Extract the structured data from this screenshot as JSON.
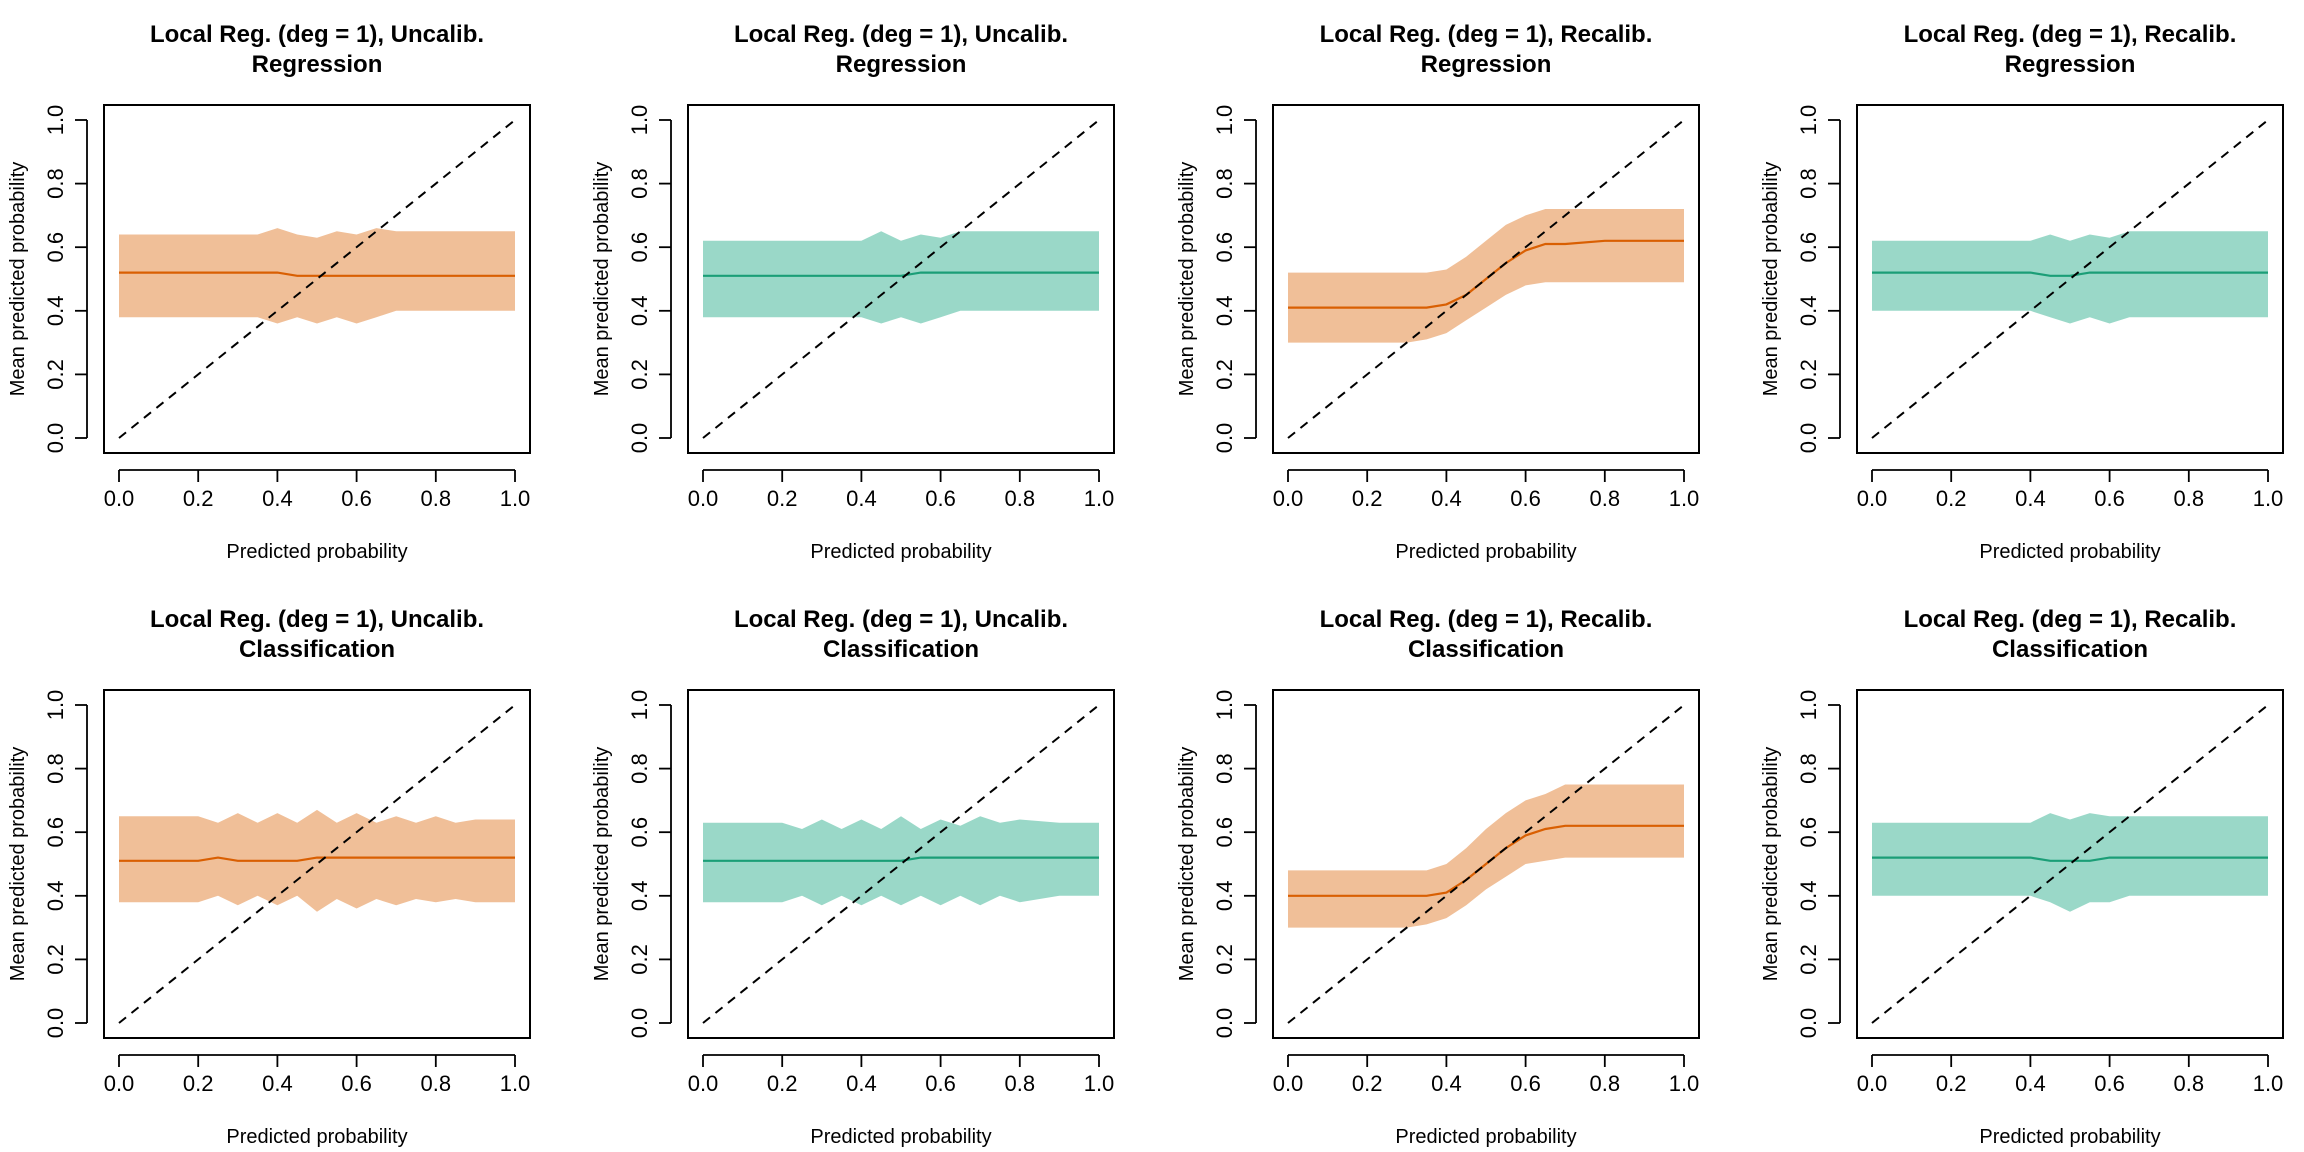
{
  "figure": {
    "colors": {
      "orange_fill": "#f0bf98",
      "orange_line": "#d95f02",
      "teal_fill": "#9ad8c8",
      "teal_line": "#1b9e77"
    },
    "xlabel": "Predicted probability",
    "ylabel": "Mean predicted probability",
    "ticks": [
      "0.0",
      "0.2",
      "0.4",
      "0.6",
      "0.8",
      "1.0"
    ]
  },
  "chart_data": [
    {
      "type": "area",
      "color": "orange",
      "title_line1": "Local Reg. (deg = 1), Uncalib.",
      "title_line2": "Regression",
      "xlabel": "Predicted probability",
      "ylabel": "Mean predicted probability",
      "xlim": [
        0,
        1
      ],
      "ylim": [
        0,
        1
      ],
      "diagonal": true,
      "x": [
        0,
        0.1,
        0.2,
        0.3,
        0.35,
        0.4,
        0.45,
        0.5,
        0.55,
        0.6,
        0.65,
        0.7,
        0.8,
        0.9,
        1.0
      ],
      "mean": [
        0.52,
        0.52,
        0.52,
        0.52,
        0.52,
        0.52,
        0.51,
        0.51,
        0.51,
        0.51,
        0.51,
        0.51,
        0.51,
        0.51,
        0.51
      ],
      "upper": [
        0.64,
        0.64,
        0.64,
        0.64,
        0.64,
        0.66,
        0.64,
        0.63,
        0.65,
        0.64,
        0.66,
        0.65,
        0.65,
        0.65,
        0.65
      ],
      "lower": [
        0.38,
        0.38,
        0.38,
        0.38,
        0.38,
        0.36,
        0.38,
        0.36,
        0.38,
        0.36,
        0.38,
        0.4,
        0.4,
        0.4,
        0.4
      ]
    },
    {
      "type": "area",
      "color": "teal",
      "title_line1": "Local Reg. (deg = 1), Uncalib.",
      "title_line2": "Regression",
      "xlabel": "Predicted probability",
      "ylabel": "Mean predicted probability",
      "xlim": [
        0,
        1
      ],
      "ylim": [
        0,
        1
      ],
      "diagonal": true,
      "x": [
        0,
        0.1,
        0.2,
        0.3,
        0.4,
        0.45,
        0.5,
        0.55,
        0.6,
        0.65,
        0.7,
        0.8,
        0.9,
        1.0
      ],
      "mean": [
        0.51,
        0.51,
        0.51,
        0.51,
        0.51,
        0.51,
        0.51,
        0.52,
        0.52,
        0.52,
        0.52,
        0.52,
        0.52,
        0.52
      ],
      "upper": [
        0.62,
        0.62,
        0.62,
        0.62,
        0.62,
        0.65,
        0.62,
        0.64,
        0.63,
        0.65,
        0.65,
        0.65,
        0.65,
        0.65
      ],
      "lower": [
        0.38,
        0.38,
        0.38,
        0.38,
        0.38,
        0.36,
        0.38,
        0.36,
        0.38,
        0.4,
        0.4,
        0.4,
        0.4,
        0.4
      ]
    },
    {
      "type": "area",
      "color": "orange",
      "title_line1": "Local Reg. (deg = 1), Recalib.",
      "title_line2": "Regression",
      "xlabel": "Predicted probability",
      "ylabel": "Mean predicted probability",
      "xlim": [
        0,
        1
      ],
      "ylim": [
        0,
        1
      ],
      "diagonal": true,
      "x": [
        0,
        0.1,
        0.2,
        0.3,
        0.35,
        0.4,
        0.45,
        0.5,
        0.55,
        0.6,
        0.65,
        0.7,
        0.8,
        0.9,
        1.0
      ],
      "mean": [
        0.41,
        0.41,
        0.41,
        0.41,
        0.41,
        0.42,
        0.45,
        0.5,
        0.55,
        0.59,
        0.61,
        0.61,
        0.62,
        0.62,
        0.62
      ],
      "upper": [
        0.52,
        0.52,
        0.52,
        0.52,
        0.52,
        0.53,
        0.57,
        0.62,
        0.67,
        0.7,
        0.72,
        0.72,
        0.72,
        0.72,
        0.72
      ],
      "lower": [
        0.3,
        0.3,
        0.3,
        0.3,
        0.31,
        0.33,
        0.37,
        0.41,
        0.45,
        0.48,
        0.49,
        0.49,
        0.49,
        0.49,
        0.49
      ]
    },
    {
      "type": "area",
      "color": "teal",
      "title_line1": "Local Reg. (deg = 1), Recalib.",
      "title_line2": "Regression",
      "xlabel": "Predicted probability",
      "ylabel": "Mean predicted probability",
      "xlim": [
        0,
        1
      ],
      "ylim": [
        0,
        1
      ],
      "diagonal": true,
      "x": [
        0,
        0.1,
        0.2,
        0.3,
        0.4,
        0.45,
        0.5,
        0.55,
        0.6,
        0.65,
        0.7,
        0.8,
        0.9,
        1.0
      ],
      "mean": [
        0.52,
        0.52,
        0.52,
        0.52,
        0.52,
        0.51,
        0.51,
        0.52,
        0.52,
        0.52,
        0.52,
        0.52,
        0.52,
        0.52
      ],
      "upper": [
        0.62,
        0.62,
        0.62,
        0.62,
        0.62,
        0.64,
        0.62,
        0.64,
        0.63,
        0.65,
        0.65,
        0.65,
        0.65,
        0.65
      ],
      "lower": [
        0.4,
        0.4,
        0.4,
        0.4,
        0.4,
        0.38,
        0.36,
        0.38,
        0.36,
        0.38,
        0.38,
        0.38,
        0.38,
        0.38
      ]
    },
    {
      "type": "area",
      "color": "orange",
      "title_line1": "Local Reg. (deg = 1), Uncalib.",
      "title_line2": "Classification",
      "xlabel": "Predicted probability",
      "ylabel": "Mean predicted probability",
      "xlim": [
        0,
        1
      ],
      "ylim": [
        0,
        1
      ],
      "diagonal": true,
      "x": [
        0,
        0.1,
        0.2,
        0.25,
        0.3,
        0.35,
        0.4,
        0.45,
        0.5,
        0.55,
        0.6,
        0.65,
        0.7,
        0.75,
        0.8,
        0.85,
        0.9,
        1.0
      ],
      "mean": [
        0.51,
        0.51,
        0.51,
        0.52,
        0.51,
        0.51,
        0.51,
        0.51,
        0.52,
        0.52,
        0.52,
        0.52,
        0.52,
        0.52,
        0.52,
        0.52,
        0.52,
        0.52
      ],
      "upper": [
        0.65,
        0.65,
        0.65,
        0.63,
        0.66,
        0.63,
        0.66,
        0.63,
        0.67,
        0.63,
        0.66,
        0.63,
        0.65,
        0.63,
        0.65,
        0.63,
        0.64,
        0.64
      ],
      "lower": [
        0.38,
        0.38,
        0.38,
        0.4,
        0.37,
        0.4,
        0.37,
        0.4,
        0.35,
        0.39,
        0.36,
        0.39,
        0.37,
        0.39,
        0.38,
        0.39,
        0.38,
        0.38
      ]
    },
    {
      "type": "area",
      "color": "teal",
      "title_line1": "Local Reg. (deg = 1), Uncalib.",
      "title_line2": "Classification",
      "xlabel": "Predicted probability",
      "ylabel": "Mean predicted probability",
      "xlim": [
        0,
        1
      ],
      "ylim": [
        0,
        1
      ],
      "diagonal": true,
      "x": [
        0,
        0.1,
        0.2,
        0.25,
        0.3,
        0.35,
        0.4,
        0.45,
        0.5,
        0.55,
        0.6,
        0.65,
        0.7,
        0.75,
        0.8,
        0.9,
        1.0
      ],
      "mean": [
        0.51,
        0.51,
        0.51,
        0.51,
        0.51,
        0.51,
        0.51,
        0.51,
        0.51,
        0.52,
        0.52,
        0.52,
        0.52,
        0.52,
        0.52,
        0.52,
        0.52
      ],
      "upper": [
        0.63,
        0.63,
        0.63,
        0.61,
        0.64,
        0.61,
        0.64,
        0.61,
        0.65,
        0.61,
        0.64,
        0.62,
        0.65,
        0.63,
        0.64,
        0.63,
        0.63
      ],
      "lower": [
        0.38,
        0.38,
        0.38,
        0.4,
        0.37,
        0.4,
        0.37,
        0.4,
        0.37,
        0.4,
        0.37,
        0.4,
        0.37,
        0.4,
        0.38,
        0.4,
        0.4
      ]
    },
    {
      "type": "area",
      "color": "orange",
      "title_line1": "Local Reg. (deg = 1), Recalib.",
      "title_line2": "Classification",
      "xlabel": "Predicted probability",
      "ylabel": "Mean predicted probability",
      "xlim": [
        0,
        1
      ],
      "ylim": [
        0,
        1
      ],
      "diagonal": true,
      "x": [
        0,
        0.1,
        0.2,
        0.3,
        0.35,
        0.4,
        0.45,
        0.5,
        0.55,
        0.6,
        0.65,
        0.7,
        0.8,
        0.9,
        1.0
      ],
      "mean": [
        0.4,
        0.4,
        0.4,
        0.4,
        0.4,
        0.41,
        0.45,
        0.5,
        0.55,
        0.59,
        0.61,
        0.62,
        0.62,
        0.62,
        0.62
      ],
      "upper": [
        0.48,
        0.48,
        0.48,
        0.48,
        0.48,
        0.5,
        0.55,
        0.61,
        0.66,
        0.7,
        0.72,
        0.75,
        0.75,
        0.75,
        0.75
      ],
      "lower": [
        0.3,
        0.3,
        0.3,
        0.3,
        0.31,
        0.33,
        0.37,
        0.42,
        0.46,
        0.5,
        0.51,
        0.52,
        0.52,
        0.52,
        0.52
      ]
    },
    {
      "type": "area",
      "color": "teal",
      "title_line1": "Local Reg. (deg = 1), Recalib.",
      "title_line2": "Classification",
      "xlabel": "Predicted probability",
      "ylabel": "Mean predicted probability",
      "xlim": [
        0,
        1
      ],
      "ylim": [
        0,
        1
      ],
      "diagonal": true,
      "x": [
        0,
        0.1,
        0.2,
        0.3,
        0.4,
        0.45,
        0.5,
        0.55,
        0.6,
        0.65,
        0.7,
        0.8,
        0.9,
        1.0
      ],
      "mean": [
        0.52,
        0.52,
        0.52,
        0.52,
        0.52,
        0.51,
        0.51,
        0.51,
        0.52,
        0.52,
        0.52,
        0.52,
        0.52,
        0.52
      ],
      "upper": [
        0.63,
        0.63,
        0.63,
        0.63,
        0.63,
        0.66,
        0.64,
        0.66,
        0.65,
        0.65,
        0.65,
        0.65,
        0.65,
        0.65
      ],
      "lower": [
        0.4,
        0.4,
        0.4,
        0.4,
        0.4,
        0.38,
        0.35,
        0.38,
        0.38,
        0.4,
        0.4,
        0.4,
        0.4,
        0.4
      ]
    }
  ]
}
